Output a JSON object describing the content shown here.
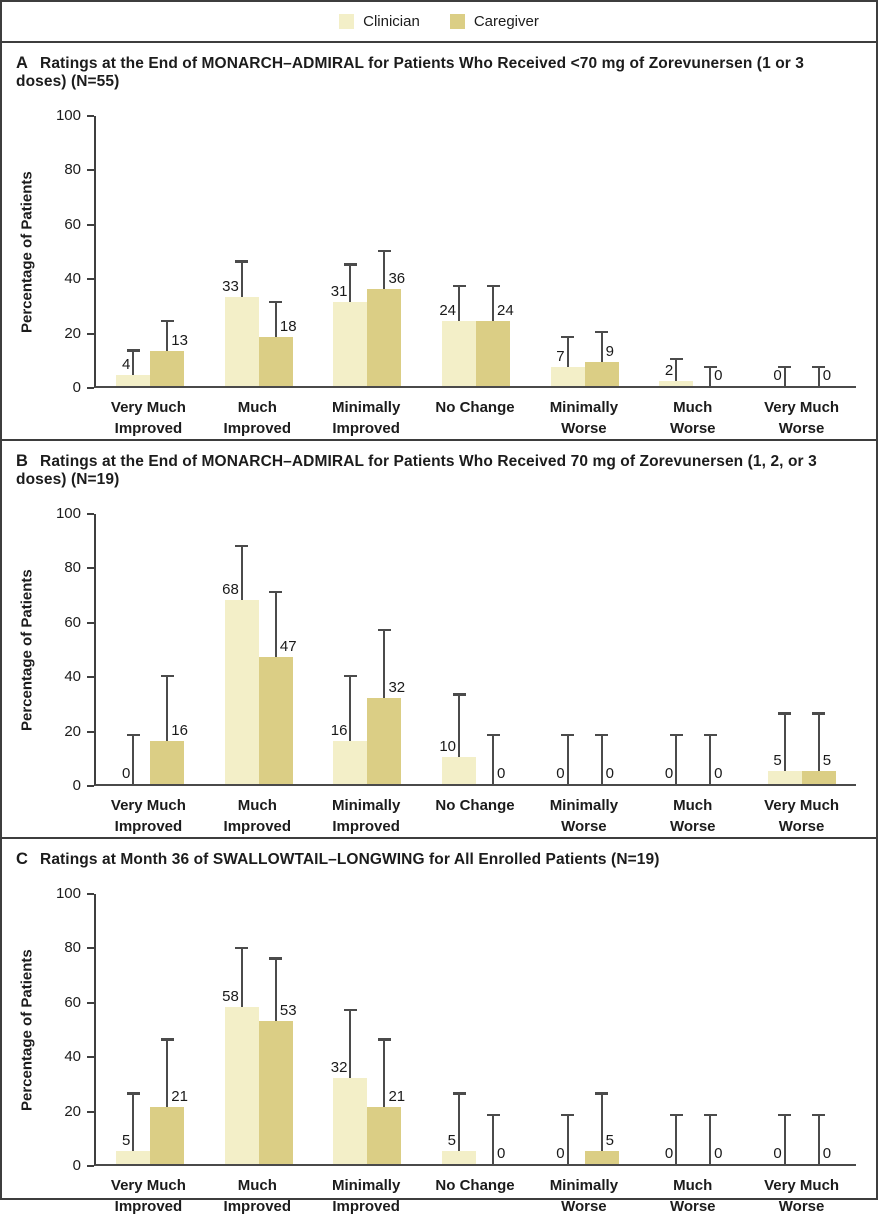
{
  "legend": {
    "items": [
      {
        "label": "Clinician",
        "color": "#F3EFC8"
      },
      {
        "label": "Caregiver",
        "color": "#DBCE85"
      }
    ]
  },
  "axes": {
    "ylabel": "Percentage of Patients",
    "yticks": [
      0,
      20,
      40,
      60,
      80,
      100
    ],
    "ylim": [
      0,
      100
    ]
  },
  "categories": [
    "Very Much Improved",
    "Much Improved",
    "Minimally Improved",
    "No Change",
    "Minimally Worse",
    "Much Worse",
    "Very Much Worse"
  ],
  "category_lines": [
    [
      "Very Much",
      "Improved"
    ],
    [
      "Much",
      "Improved"
    ],
    [
      "Minimally",
      "Improved"
    ],
    [
      "No Change"
    ],
    [
      "Minimally",
      "Worse"
    ],
    [
      "Much",
      "Worse"
    ],
    [
      "Very Much",
      "Worse"
    ]
  ],
  "chart_data": [
    {
      "type": "bar",
      "id": "A",
      "title": "Ratings at the End of MONARCH–ADMIRAL for Patients Who Received <70 mg of Zorevunersen (1 or 3 doses) (N=55)",
      "ylabel": "Percentage of Patients",
      "ylim": [
        0,
        100
      ],
      "series": [
        {
          "name": "Clinician",
          "values": [
            4,
            33,
            31,
            24,
            7,
            2,
            0
          ],
          "err_top": [
            13,
            46,
            45,
            37,
            18,
            10,
            7
          ]
        },
        {
          "name": "Caregiver",
          "values": [
            13,
            18,
            36,
            24,
            9,
            0,
            0
          ],
          "err_top": [
            24,
            31,
            50,
            37,
            20,
            7,
            7
          ]
        }
      ]
    },
    {
      "type": "bar",
      "id": "B",
      "title": "Ratings at the End of MONARCH–ADMIRAL for Patients Who Received 70 mg of Zorevunersen (1, 2, or 3 doses) (N=19)",
      "ylabel": "Percentage of Patients",
      "ylim": [
        0,
        100
      ],
      "series": [
        {
          "name": "Clinician",
          "values": [
            0,
            68,
            16,
            10,
            0,
            0,
            5
          ],
          "err_top": [
            18,
            88,
            40,
            33,
            18,
            18,
            26
          ]
        },
        {
          "name": "Caregiver",
          "values": [
            16,
            47,
            32,
            0,
            0,
            0,
            5
          ],
          "err_top": [
            40,
            71,
            57,
            18,
            18,
            18,
            26
          ]
        }
      ]
    },
    {
      "type": "bar",
      "id": "C",
      "title": "Ratings at Month 36 of SWALLOWTAIL–LONGWING for All Enrolled Patients (N=19)",
      "ylabel": "Percentage of Patients",
      "ylim": [
        0,
        100
      ],
      "series": [
        {
          "name": "Clinician",
          "values": [
            5,
            58,
            32,
            5,
            0,
            0,
            0
          ],
          "err_top": [
            26,
            80,
            57,
            26,
            18,
            18,
            18
          ]
        },
        {
          "name": "Caregiver",
          "values": [
            21,
            53,
            21,
            0,
            5,
            0,
            0
          ],
          "err_top": [
            46,
            76,
            46,
            18,
            26,
            18,
            18
          ]
        }
      ]
    }
  ]
}
